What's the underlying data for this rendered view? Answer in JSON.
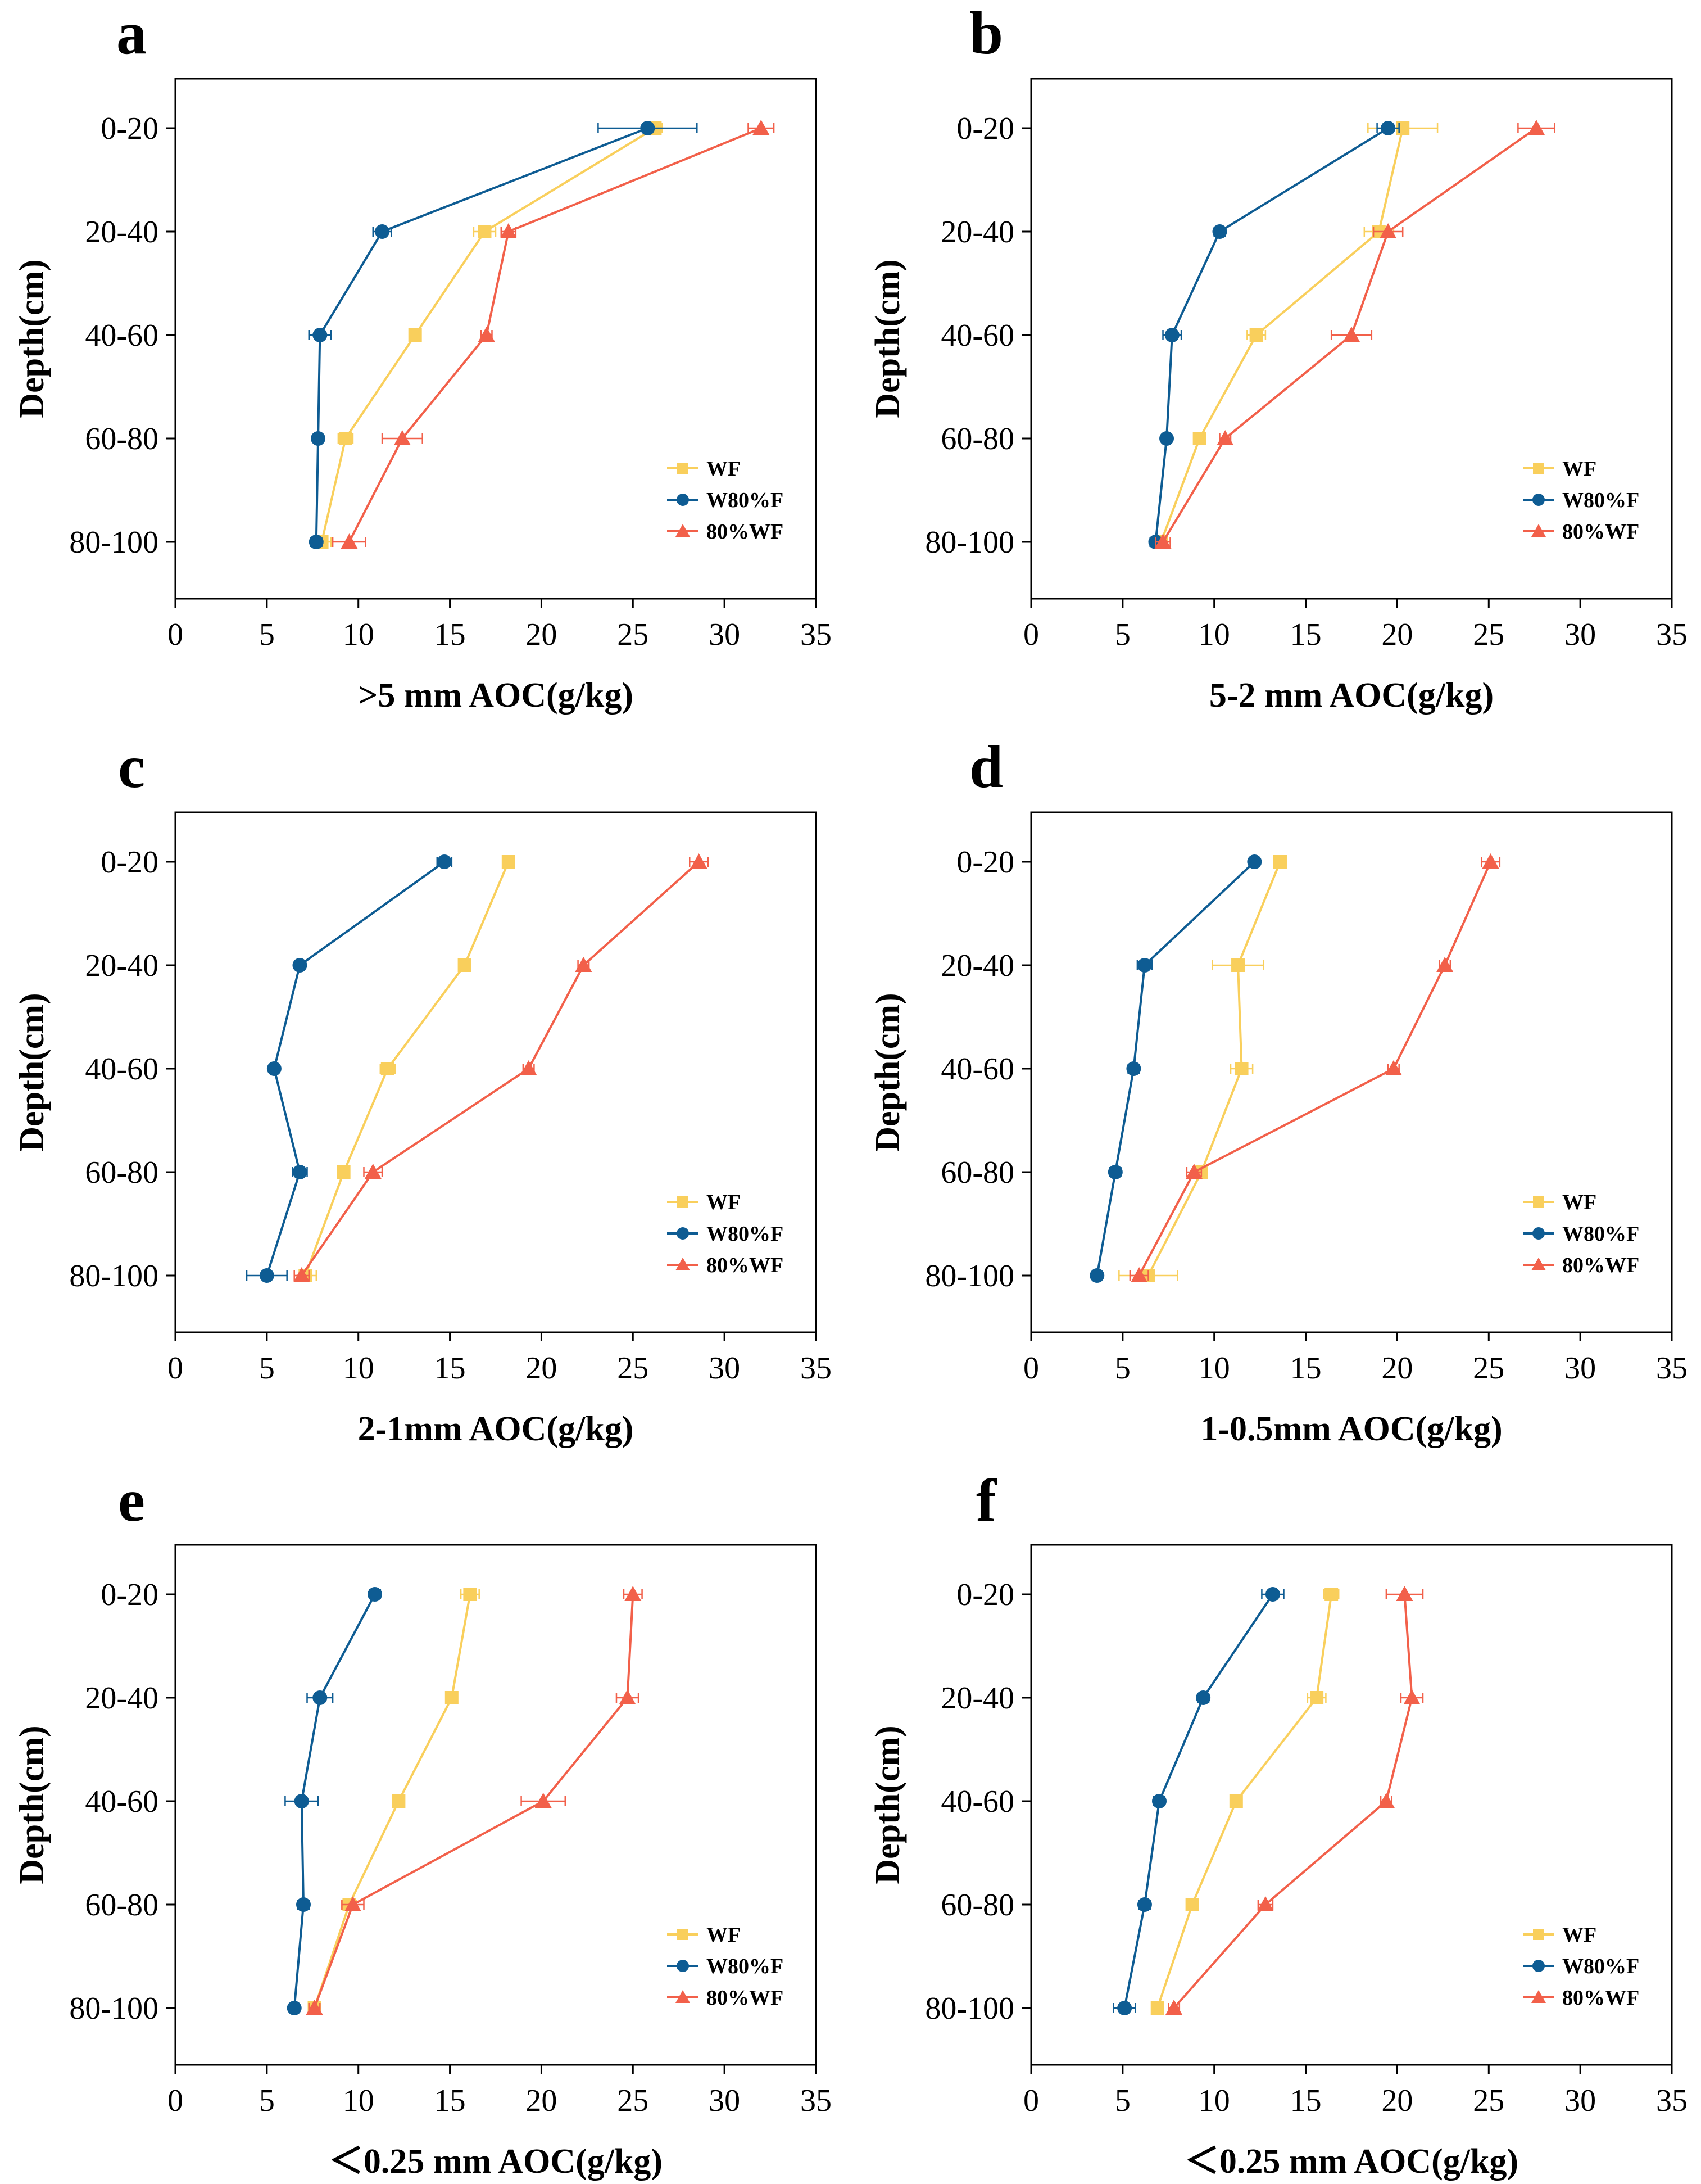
{
  "series_style": {
    "WF": {
      "color": "#F9CF5C",
      "marker": "square"
    },
    "W80%F": {
      "color": "#0E5C93",
      "marker": "circle"
    },
    "80%WF": {
      "color": "#F2604A",
      "marker": "triangle"
    }
  },
  "chart_data": [
    {
      "panel": "a",
      "type": "line",
      "xlabel": ">5 mm AOC(g/kg)",
      "ylabel": "Depth(cm)",
      "xlim": [
        0,
        35
      ],
      "xticks": [
        "0",
        "5",
        "10",
        "15",
        "20",
        "25",
        "30",
        "35"
      ],
      "categories": [
        "0-20",
        "20-40",
        "40-60",
        "60-80",
        "80-100"
      ],
      "legend": [
        "WF",
        "W80%F",
        "80%WF"
      ],
      "series": [
        {
          "name": "WF",
          "values": [
            26.2,
            16.9,
            13.1,
            9.3,
            8.0
          ],
          "errors": [
            0.4,
            0.6,
            0.3,
            0.4,
            0.5
          ]
        },
        {
          "name": "W80%F",
          "values": [
            25.8,
            11.3,
            7.9,
            7.8,
            7.7
          ],
          "errors": [
            2.7,
            0.5,
            0.6,
            0.2,
            0.3
          ]
        },
        {
          "name": "80%WF",
          "values": [
            32.0,
            18.2,
            17.0,
            12.4,
            9.5
          ],
          "errors": [
            0.7,
            0.4,
            0.3,
            1.1,
            0.9
          ]
        }
      ]
    },
    {
      "panel": "b",
      "type": "line",
      "xlabel": "5-2 mm AOC(g/kg)",
      "ylabel": "Depth(cm)",
      "xlim": [
        0,
        35
      ],
      "xticks": [
        "0",
        "5",
        "10",
        "15",
        "20",
        "25",
        "30",
        "35"
      ],
      "categories": [
        "0-20",
        "20-40",
        "40-60",
        "60-80",
        "80-100"
      ],
      "legend": [
        "WF",
        "W80%F",
        "80%WF"
      ],
      "series": [
        {
          "name": "WF",
          "values": [
            20.3,
            19.0,
            12.3,
            9.2,
            7.1
          ],
          "errors": [
            1.9,
            0.8,
            0.5,
            0.3,
            0.5
          ]
        },
        {
          "name": "W80%F",
          "values": [
            19.5,
            10.3,
            7.7,
            7.4,
            6.8
          ],
          "errors": [
            0.6,
            0.3,
            0.5,
            0.2,
            0.3
          ]
        },
        {
          "name": "80%WF",
          "values": [
            27.6,
            19.5,
            17.5,
            10.6,
            7.2
          ],
          "errors": [
            1.0,
            0.8,
            1.1,
            0.3,
            0.4
          ]
        }
      ]
    },
    {
      "panel": "c",
      "type": "line",
      "xlabel": "2-1mm AOC(g/kg)",
      "ylabel": "Depth(cm)",
      "xlim": [
        0,
        35
      ],
      "xticks": [
        "0",
        "5",
        "10",
        "15",
        "20",
        "25",
        "30",
        "35"
      ],
      "categories": [
        "0-20",
        "20-40",
        "40-60",
        "60-80",
        "80-100"
      ],
      "legend": [
        "WF",
        "W80%F",
        "80%WF"
      ],
      "series": [
        {
          "name": "WF",
          "values": [
            18.2,
            15.8,
            11.6,
            9.2,
            7.1
          ],
          "errors": [
            0.3,
            0.3,
            0.4,
            0.3,
            0.6
          ]
        },
        {
          "name": "W80%F",
          "values": [
            14.7,
            6.8,
            5.4,
            6.8,
            5.0
          ],
          "errors": [
            0.4,
            0.2,
            0.2,
            0.4,
            1.1
          ]
        },
        {
          "name": "80%WF",
          "values": [
            28.6,
            22.3,
            19.3,
            10.8,
            6.9
          ],
          "errors": [
            0.5,
            0.3,
            0.3,
            0.5,
            0.4
          ]
        }
      ]
    },
    {
      "panel": "d",
      "type": "line",
      "xlabel": "1-0.5mm AOC(g/kg)",
      "ylabel": "Depth(cm)",
      "xlim": [
        0,
        35
      ],
      "xticks": [
        "0",
        "5",
        "10",
        "15",
        "20",
        "25",
        "30",
        "35"
      ],
      "categories": [
        "0-20",
        "20-40",
        "40-60",
        "60-80",
        "80-100"
      ],
      "legend": [
        "WF",
        "W80%F",
        "80%WF"
      ],
      "series": [
        {
          "name": "WF",
          "values": [
            13.6,
            11.3,
            11.5,
            9.3,
            6.4
          ],
          "errors": [
            0.3,
            1.4,
            0.6,
            0.3,
            1.6
          ]
        },
        {
          "name": "W80%F",
          "values": [
            12.2,
            6.2,
            5.6,
            4.6,
            3.6
          ],
          "errors": [
            0.2,
            0.4,
            0.3,
            0.3,
            0.2
          ]
        },
        {
          "name": "80%WF",
          "values": [
            25.1,
            22.6,
            19.8,
            8.9,
            5.9
          ],
          "errors": [
            0.5,
            0.3,
            0.3,
            0.4,
            0.5
          ]
        }
      ]
    },
    {
      "panel": "e",
      "type": "line",
      "xlabel": "＜0.25 mm AOC(g/kg)",
      "ylabel": "Depth(cm)",
      "xlim": [
        0,
        35
      ],
      "xticks": [
        "0",
        "5",
        "10",
        "15",
        "20",
        "25",
        "30",
        "35"
      ],
      "categories": [
        "0-20",
        "20-40",
        "40-60",
        "60-80",
        "80-100"
      ],
      "legend": [
        "WF",
        "W80%F",
        "80%WF"
      ],
      "series": [
        {
          "name": "WF",
          "values": [
            16.1,
            15.1,
            12.2,
            9.5,
            7.6
          ],
          "errors": [
            0.5,
            0.3,
            0.3,
            0.4,
            0.3
          ]
        },
        {
          "name": "W80%F",
          "values": [
            10.9,
            7.9,
            6.9,
            7.0,
            6.5
          ],
          "errors": [
            0.3,
            0.7,
            0.9,
            0.3,
            0.2
          ]
        },
        {
          "name": "80%WF",
          "values": [
            25.0,
            24.7,
            20.1,
            9.7,
            7.6
          ],
          "errors": [
            0.5,
            0.6,
            1.2,
            0.6,
            0.3
          ]
        }
      ]
    },
    {
      "panel": "f",
      "type": "line",
      "xlabel": "＜0.25 mm AOC(g/kg)",
      "ylabel": "Depth(cm)",
      "xlim": [
        0,
        35
      ],
      "xticks": [
        "0",
        "5",
        "10",
        "15",
        "20",
        "25",
        "30",
        "35"
      ],
      "categories": [
        "0-20",
        "20-40",
        "40-60",
        "60-80",
        "80-100"
      ],
      "legend": [
        "WF",
        "W80%F",
        "80%WF"
      ],
      "series": [
        {
          "name": "WF",
          "values": [
            16.4,
            15.6,
            11.2,
            8.8,
            6.9
          ],
          "errors": [
            0.4,
            0.5,
            0.3,
            0.3,
            0.3
          ]
        },
        {
          "name": "W80%F",
          "values": [
            13.2,
            9.4,
            7.0,
            6.2,
            5.1
          ],
          "errors": [
            0.6,
            0.3,
            0.3,
            0.3,
            0.6
          ]
        },
        {
          "name": "80%WF",
          "values": [
            20.4,
            20.8,
            19.4,
            12.8,
            7.8
          ],
          "errors": [
            1.0,
            0.6,
            0.3,
            0.4,
            0.3
          ]
        }
      ]
    }
  ]
}
